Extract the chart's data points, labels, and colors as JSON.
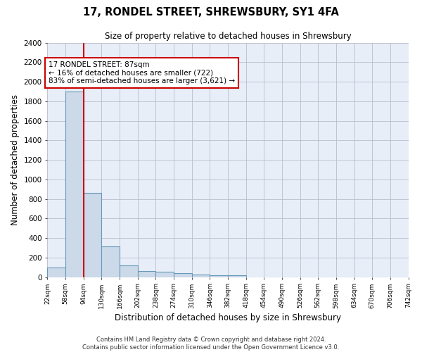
{
  "title": "17, RONDEL STREET, SHREWSBURY, SY1 4FA",
  "subtitle": "Size of property relative to detached houses in Shrewsbury",
  "xlabel": "Distribution of detached houses by size in Shrewsbury",
  "ylabel": "Number of detached properties",
  "bar_color": "#ccd9e8",
  "bar_edge_color": "#6699bb",
  "background_color": "#e8eef8",
  "grid_color": "#bbbbcc",
  "annotation_line1": "17 RONDEL STREET: 87sqm",
  "annotation_line2": "← 16% of detached houses are smaller (722)",
  "annotation_line3": "83% of semi-detached houses are larger (3,621) →",
  "vline_x": 94,
  "vline_color": "#cc0000",
  "annotation_box_edge": "#cc0000",
  "bin_edges": [
    22,
    58,
    94,
    130,
    166,
    202,
    238,
    274,
    310,
    346,
    382,
    418,
    454,
    490,
    526,
    562,
    598,
    634,
    670,
    706,
    742
  ],
  "bar_heights": [
    100,
    1900,
    860,
    315,
    120,
    60,
    52,
    42,
    25,
    20,
    15,
    0,
    0,
    0,
    0,
    0,
    0,
    0,
    0,
    0
  ],
  "ylim": [
    0,
    2400
  ],
  "yticks": [
    0,
    200,
    400,
    600,
    800,
    1000,
    1200,
    1400,
    1600,
    1800,
    2000,
    2200,
    2400
  ],
  "footer_line1": "Contains HM Land Registry data © Crown copyright and database right 2024.",
  "footer_line2": "Contains public sector information licensed under the Open Government Licence v3.0.",
  "figsize": [
    6.0,
    5.0
  ],
  "dpi": 100
}
